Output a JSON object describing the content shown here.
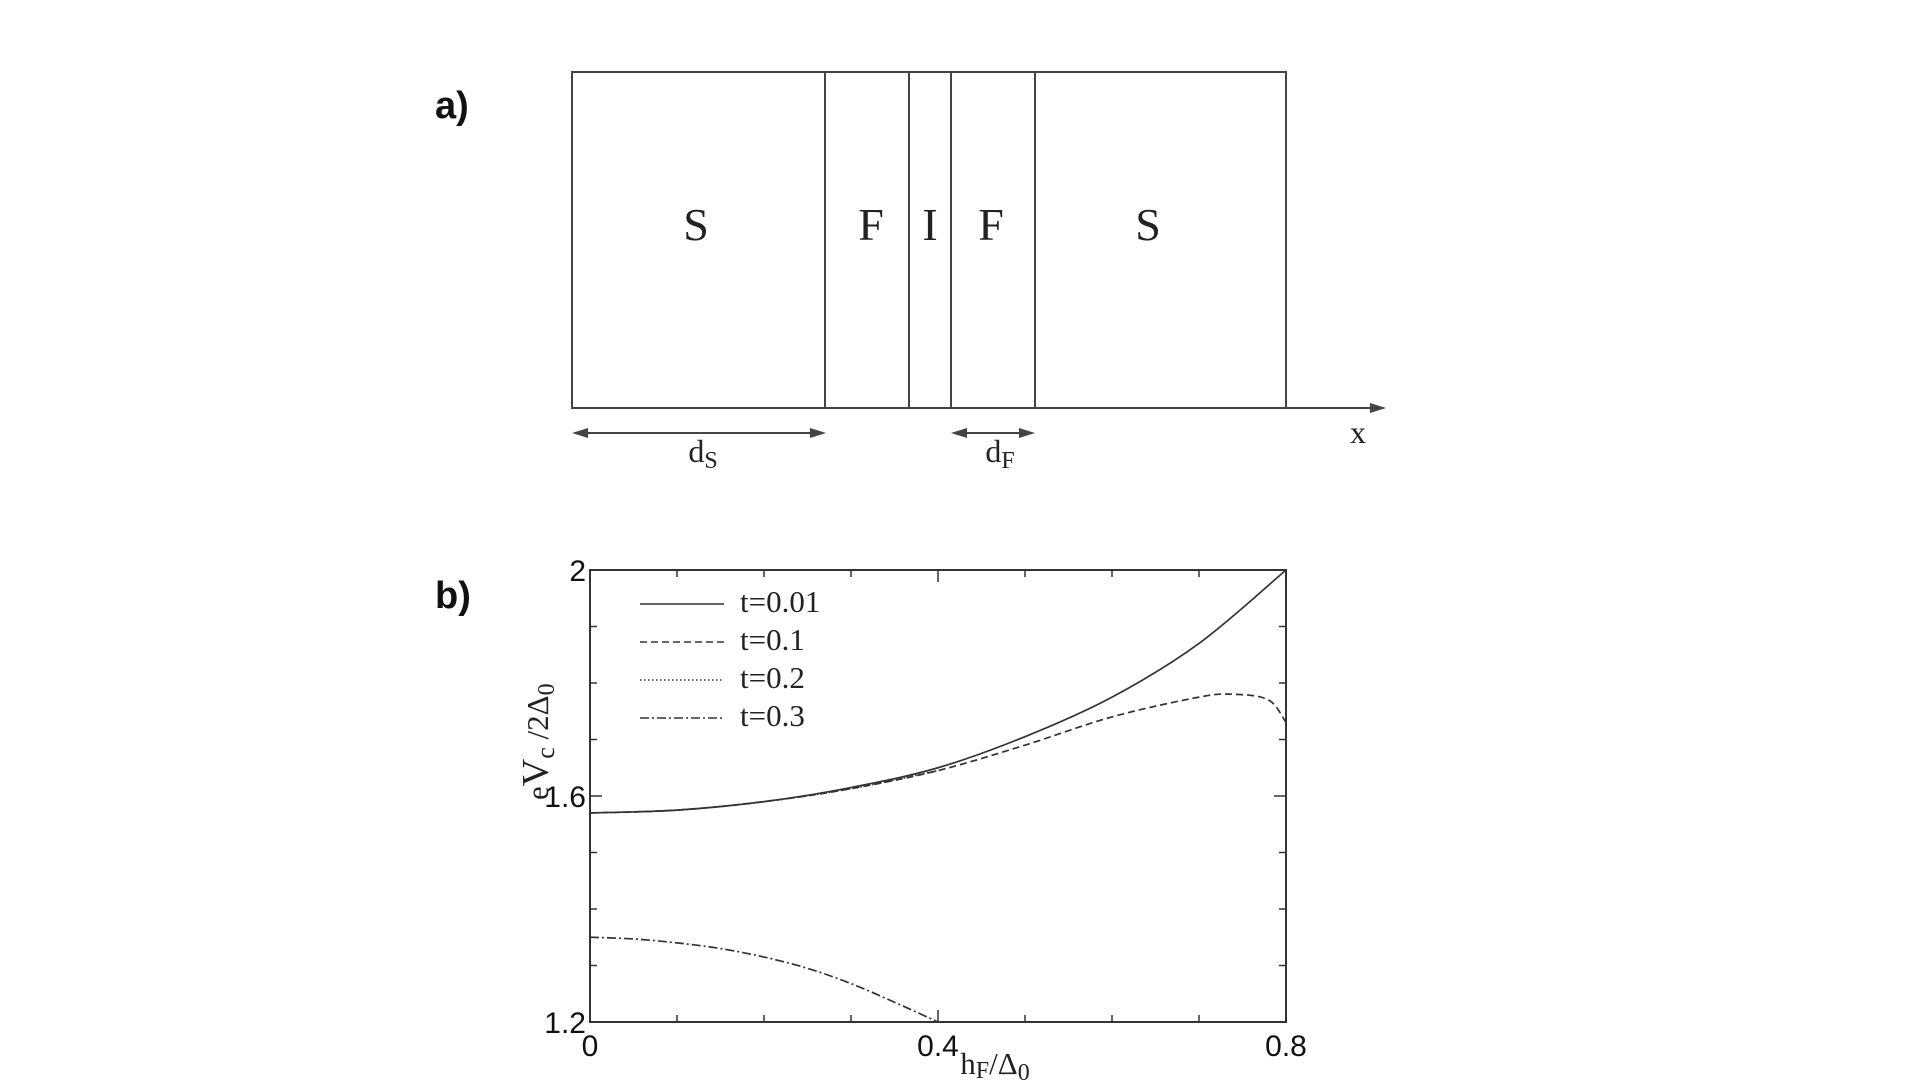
{
  "panel_a": {
    "label": "a)",
    "layers": [
      "S",
      "F",
      "I",
      "F",
      "S"
    ],
    "x_axis_label": "x",
    "dimension_s": {
      "main": "d",
      "sub": "S"
    },
    "dimension_f": {
      "main": "d",
      "sub": "F"
    }
  },
  "panel_b": {
    "label": "b)"
  },
  "chart_data": {
    "type": "line",
    "xlabel": {
      "main": "h",
      "sub": "F",
      "rest": "/Δ",
      "sub2": "0"
    },
    "ylabel": {
      "pre": "e",
      "main": "V",
      "sub": "c",
      "rest": " /2Δ",
      "sub2": "0"
    },
    "xlim": [
      0,
      0.8
    ],
    "ylim": [
      1.2,
      2.0
    ],
    "x_ticks": [
      {
        "value": 0,
        "label": "0"
      },
      {
        "value": 0.4,
        "label": "0.4"
      },
      {
        "value": 0.8,
        "label": "0.8"
      }
    ],
    "y_ticks": [
      {
        "value": 1.2,
        "label": "1.2"
      },
      {
        "value": 1.6,
        "label": "1.6"
      },
      {
        "value": 2.0,
        "label": "2"
      }
    ],
    "legend_position": "top-left",
    "series": [
      {
        "name": "t=0.01",
        "style": "solid",
        "x": [
          0,
          0.1,
          0.2,
          0.3,
          0.4,
          0.5,
          0.6,
          0.7,
          0.8
        ],
        "y": [
          1.57,
          1.575,
          1.59,
          1.615,
          1.65,
          1.705,
          1.775,
          1.87,
          2.0
        ]
      },
      {
        "name": "t=0.1",
        "style": "dashed",
        "x": [
          0,
          0.1,
          0.2,
          0.3,
          0.4,
          0.5,
          0.6,
          0.7,
          0.74,
          0.78,
          0.8
        ],
        "y": [
          1.57,
          1.575,
          1.59,
          1.613,
          1.645,
          1.69,
          1.74,
          1.775,
          1.78,
          1.77,
          1.73
        ]
      },
      {
        "name": "t=0.2",
        "style": "dotted",
        "x": [
          0,
          0.1,
          0.2,
          0.3,
          0.4
        ],
        "y": [
          1.57,
          1.575,
          1.59,
          1.613,
          1.645
        ]
      },
      {
        "name": "t=0.3",
        "style": "dashdot",
        "x": [
          0,
          0.05,
          0.1,
          0.15,
          0.2,
          0.25,
          0.3,
          0.35,
          0.4
        ],
        "y": [
          1.35,
          1.347,
          1.34,
          1.33,
          1.315,
          1.295,
          1.268,
          1.235,
          1.2
        ]
      }
    ]
  }
}
